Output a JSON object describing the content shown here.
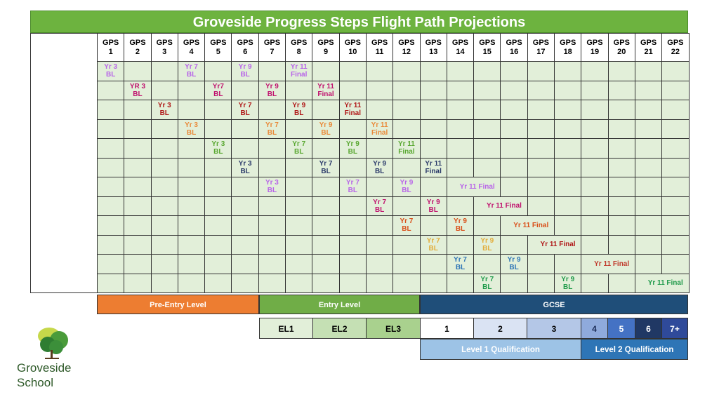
{
  "title": "Groveside Progress Steps Flight Path Projections",
  "gps_headers": [
    [
      "GPS",
      "1"
    ],
    [
      "GPS",
      "2"
    ],
    [
      "GPS",
      "3"
    ],
    [
      "GPS",
      "4"
    ],
    [
      "GPS",
      "5"
    ],
    [
      "GPS",
      "6"
    ],
    [
      "GPS",
      "7"
    ],
    [
      "GPS",
      "8"
    ],
    [
      "GPS",
      "9"
    ],
    [
      "GPS",
      "10"
    ],
    [
      "GPS",
      "11"
    ],
    [
      "GPS",
      "12"
    ],
    [
      "GPS",
      "13"
    ],
    [
      "GPS",
      "14"
    ],
    [
      "GPS",
      "15"
    ],
    [
      "GPS",
      "16"
    ],
    [
      "GPS",
      "17"
    ],
    [
      "GPS",
      "18"
    ],
    [
      "GPS",
      "19"
    ],
    [
      "GPS",
      "20"
    ],
    [
      "GPS",
      "21"
    ],
    [
      "GPS",
      "22"
    ]
  ],
  "rows": [
    {
      "color": "#b865e8",
      "cells": [
        {
          "c": 1,
          "l1": "Yr 3",
          "l2": "BL"
        },
        {
          "c": 4,
          "l1": "Yr 7",
          "l2": "BL"
        },
        {
          "c": 6,
          "l1": "Yr 9",
          "l2": "BL"
        },
        {
          "c": 8,
          "l1": "Yr 11",
          "l2": "Final"
        }
      ]
    },
    {
      "color": "#c0126e",
      "cells": [
        {
          "c": 2,
          "l1": "YR 3",
          "l2": "BL"
        },
        {
          "c": 5,
          "l1": "Yr7",
          "l2": "BL"
        },
        {
          "c": 7,
          "l1": "Yr 9",
          "l2": "BL"
        },
        {
          "c": 9,
          "l1": "Yr 11",
          "l2": "Final"
        }
      ]
    },
    {
      "color": "#b01818",
      "cells": [
        {
          "c": 3,
          "l1": "Yr 3",
          "l2": "BL"
        },
        {
          "c": 6,
          "l1": "Yr 7",
          "l2": "BL"
        },
        {
          "c": 8,
          "l1": "Yr 9",
          "l2": "BL"
        },
        {
          "c": 10,
          "l1": "Yr 11",
          "l2": "Final"
        }
      ]
    },
    {
      "color": "#e98a3a",
      "cells": [
        {
          "c": 4,
          "l1": "Yr 3",
          "l2": "BL"
        },
        {
          "c": 7,
          "l1": "Yr 7",
          "l2": "BL"
        },
        {
          "c": 9,
          "l1": "Yr 9",
          "l2": "BL"
        },
        {
          "c": 11,
          "l1": "Yr 11",
          "l2": "Final"
        }
      ]
    },
    {
      "color": "#5aa832",
      "cells": [
        {
          "c": 5,
          "l1": "Yr 3",
          "l2": "BL"
        },
        {
          "c": 8,
          "l1": "Yr 7",
          "l2": "BL"
        },
        {
          "c": 10,
          "l1": "Yr 9",
          "l2": "BL"
        },
        {
          "c": 12,
          "l1": "Yr 11",
          "l2": "Final"
        }
      ]
    },
    {
      "color": "#2b3a6a",
      "cells": [
        {
          "c": 6,
          "l1": "Yr 3",
          "l2": "BL"
        },
        {
          "c": 9,
          "l1": "Yr 7",
          "l2": "BL"
        },
        {
          "c": 11,
          "l1": "Yr 9",
          "l2": "BL"
        },
        {
          "c": 13,
          "l1": "Yr 11",
          "l2": "Final"
        }
      ]
    },
    {
      "color": "#b865e8",
      "cells": [
        {
          "c": 7,
          "l1": "Yr 3",
          "l2": "BL"
        },
        {
          "c": 10,
          "l1": "Yr 7",
          "l2": "BL"
        },
        {
          "c": 12,
          "l1": "Yr 9",
          "l2": "BL"
        },
        {
          "c": 14,
          "span": 2,
          "wide": "Yr 11 Final"
        }
      ]
    },
    {
      "color": "#c0126e",
      "cells": [
        {
          "c": 11,
          "l1": "Yr 7",
          "l2": "BL"
        },
        {
          "c": 13,
          "l1": "Yr 9",
          "l2": "BL"
        },
        {
          "c": 15,
          "span": 2,
          "wide": "Yr 11 Final"
        }
      ]
    },
    {
      "color": "#d9501a",
      "cells": [
        {
          "c": 12,
          "l1": "Yr 7",
          "l2": "BL"
        },
        {
          "c": 14,
          "l1": "Yr 9",
          "l2": "BL"
        },
        {
          "c": 16,
          "span": 2,
          "wide": "Yr 11 Final"
        }
      ]
    },
    {
      "color": "#e3ad3a",
      "tail": "#b01818",
      "cells": [
        {
          "c": 13,
          "l1": "Yr 7",
          "l2": "BL"
        },
        {
          "c": 15,
          "l1": "Yr 9",
          "l2": "BL"
        },
        {
          "c": 17,
          "span": 2,
          "wide": "Yr 11 Final",
          "alt": true
        }
      ]
    },
    {
      "color": "#2e75b6",
      "tail": "#c0392b",
      "cells": [
        {
          "c": 14,
          "l1": "Yr 7",
          "l2": "BL"
        },
        {
          "c": 16,
          "span": 1,
          "l1": "Yr 9",
          "l2": "BL"
        },
        {
          "c": 19,
          "span": 2,
          "wide": "Yr 11 Final",
          "alt": true
        }
      ]
    },
    {
      "color": "#1f9a4a",
      "cells": [
        {
          "c": 15,
          "l1": "Yr 7",
          "l2": "BL"
        },
        {
          "c": 18,
          "l1": "Yr 9",
          "l2": "BL"
        },
        {
          "c": 21,
          "span": 2,
          "wide": "Yr 11 Final"
        }
      ]
    }
  ],
  "levels": {
    "pre_entry": "Pre-Entry Level",
    "entry": "Entry Level",
    "gcse": "GCSE"
  },
  "sub_levels": [
    "EL1",
    "EL2",
    "EL3",
    "1",
    "2",
    "3",
    "4",
    "5",
    "6",
    "7+"
  ],
  "qualifications": {
    "level1": "Level 1 Qualification",
    "level2": "Level 2 Qualification"
  },
  "school": {
    "line1": "Groveside",
    "line2": "School"
  },
  "colors": {
    "title_green": "#6db33f",
    "grid_green": "#e2efd9",
    "pre_entry_orange": "#ed7d31",
    "entry_green": "#70ad47",
    "gcse_blue": "#1f4e79",
    "level1_blue": "#9dc3e6",
    "level2_blue": "#2e75b6"
  }
}
